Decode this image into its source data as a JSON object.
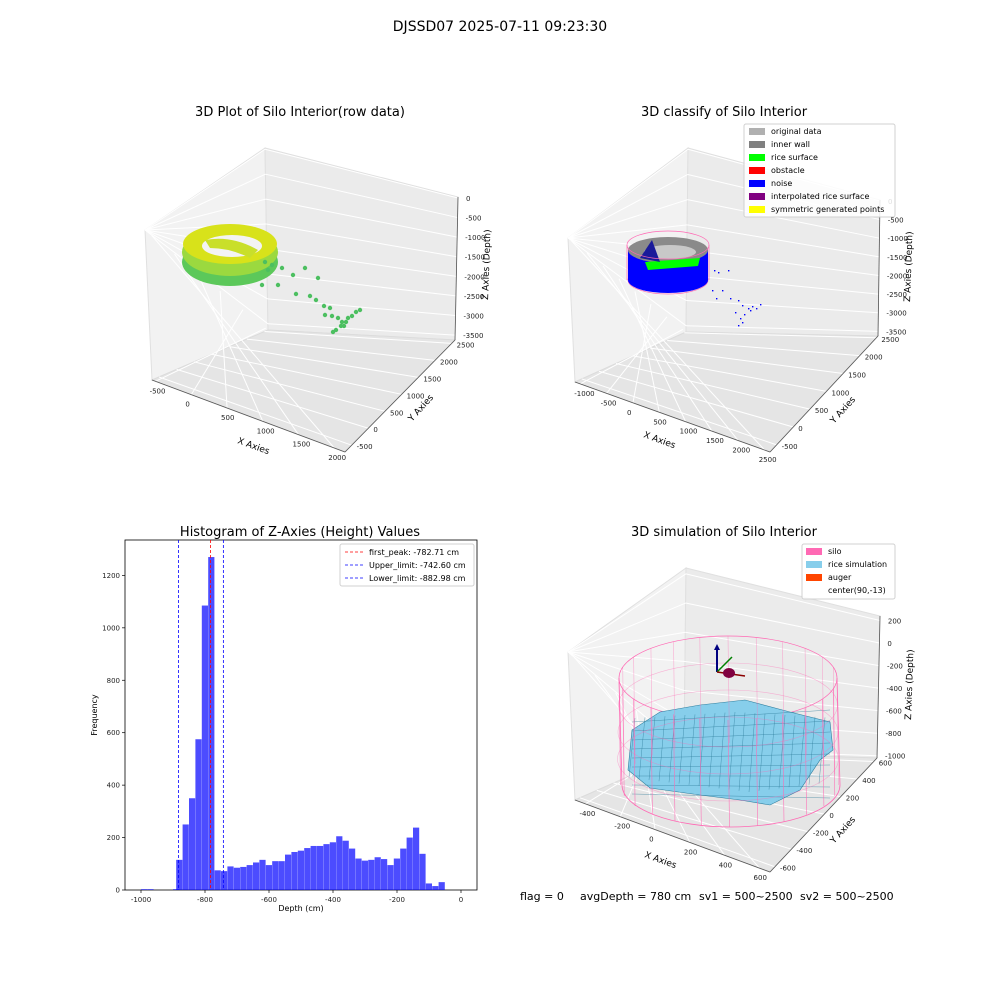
{
  "figure": {
    "suptitle": "DJSSD07 2025-07-11 09:23:30",
    "footer": {
      "flag": "flag = 0",
      "avg_depth": "avgDepth = 780 cm",
      "sv1": "sv1 = 500~2500",
      "sv2": "sv2 = 500~2500"
    }
  },
  "colors": {
    "original_data": "#b0b0b0",
    "inner_wall": "#808080",
    "rice_surface": "#00ff00",
    "obstacle": "#ff0000",
    "noise": "#0000ff",
    "interpolated": "#800080",
    "symmetric": "#ffff00",
    "silo": "#ff69b4",
    "rice_sim": "#87ceeb",
    "auger": "#ff4500",
    "hist_bar": "#0000ff"
  },
  "chart_data": [
    {
      "type": "scatter3d",
      "title": "3D Plot of Silo Interior(row data)",
      "xlabel": "X Axies",
      "ylabel": "Y Axies",
      "zlabel": "Z Axies (Depth)",
      "x_ticks": [
        "-500",
        "0",
        "500",
        "1000",
        "1500",
        "2000"
      ],
      "y_ticks": [
        "-500",
        "0",
        "500",
        "1000",
        "1500",
        "2000",
        "2500"
      ],
      "z_ticks": [
        "0",
        "-500",
        "-1000",
        "-1500",
        "-2000",
        "-2500",
        "-3000",
        "-3500"
      ],
      "grid": true
    },
    {
      "type": "scatter3d",
      "title": "3D classify of Silo Interior",
      "xlabel": "X Axies",
      "ylabel": "Y Axies",
      "zlabel": "Z Axies (Depth)",
      "x_ticks": [
        "-1000",
        "-500",
        "0",
        "500",
        "1000",
        "1500",
        "2000",
        "2500"
      ],
      "y_ticks": [
        "-500",
        "0",
        "500",
        "1000",
        "1500",
        "2000",
        "2500"
      ],
      "z_ticks": [
        "0",
        "-500",
        "-1000",
        "-1500",
        "-2000",
        "-2500",
        "-3000",
        "-3500"
      ],
      "legend": [
        "original data",
        "inner wall",
        "rice surface",
        "obstacle",
        "noise",
        "interpolated rice surface",
        "symmetric generated points"
      ],
      "legend_position": "top-right",
      "grid": true
    },
    {
      "type": "bar",
      "title": "Histogram of Z-Axies (Height) Values",
      "xlabel": "Depth (cm)",
      "ylabel": "Frequency",
      "xlim": [
        -1050,
        50
      ],
      "ylim": [
        0,
        1335
      ],
      "x_ticks": [
        -1000,
        -800,
        -600,
        -400,
        -200,
        0
      ],
      "y_ticks": [
        0,
        200,
        400,
        600,
        800,
        1000,
        1200
      ],
      "bin_width": 20,
      "bins": [
        {
          "x0": -1000,
          "y": 3
        },
        {
          "x0": -980,
          "y": 3
        },
        {
          "x0": -900,
          "y": 3
        },
        {
          "x0": -890,
          "y": 115
        },
        {
          "x0": -870,
          "y": 250
        },
        {
          "x0": -850,
          "y": 350
        },
        {
          "x0": -830,
          "y": 575
        },
        {
          "x0": -810,
          "y": 1085
        },
        {
          "x0": -790,
          "y": 1270
        },
        {
          "x0": -770,
          "y": 75
        },
        {
          "x0": -750,
          "y": 72
        },
        {
          "x0": -730,
          "y": 90
        },
        {
          "x0": -710,
          "y": 85
        },
        {
          "x0": -690,
          "y": 88
        },
        {
          "x0": -670,
          "y": 95
        },
        {
          "x0": -650,
          "y": 105
        },
        {
          "x0": -630,
          "y": 115
        },
        {
          "x0": -610,
          "y": 95
        },
        {
          "x0": -590,
          "y": 110
        },
        {
          "x0": -570,
          "y": 110
        },
        {
          "x0": -550,
          "y": 135
        },
        {
          "x0": -530,
          "y": 145
        },
        {
          "x0": -510,
          "y": 150
        },
        {
          "x0": -490,
          "y": 160
        },
        {
          "x0": -470,
          "y": 168
        },
        {
          "x0": -450,
          "y": 168
        },
        {
          "x0": -430,
          "y": 175
        },
        {
          "x0": -410,
          "y": 182
        },
        {
          "x0": -390,
          "y": 205
        },
        {
          "x0": -370,
          "y": 188
        },
        {
          "x0": -350,
          "y": 158
        },
        {
          "x0": -330,
          "y": 120
        },
        {
          "x0": -310,
          "y": 112
        },
        {
          "x0": -290,
          "y": 115
        },
        {
          "x0": -270,
          "y": 125
        },
        {
          "x0": -250,
          "y": 118
        },
        {
          "x0": -230,
          "y": 95
        },
        {
          "x0": -210,
          "y": 120
        },
        {
          "x0": -190,
          "y": 158
        },
        {
          "x0": -170,
          "y": 200
        },
        {
          "x0": -150,
          "y": 238
        },
        {
          "x0": -130,
          "y": 138
        },
        {
          "x0": -110,
          "y": 25
        },
        {
          "x0": -90,
          "y": 15
        },
        {
          "x0": -70,
          "y": 30
        }
      ],
      "lines": [
        {
          "label": "first_peak: -782.71 cm",
          "x": -782.71,
          "color": "#ff0000"
        },
        {
          "label": "Upper_limit: -742.60 cm",
          "x": -742.6,
          "color": "#0000ff"
        },
        {
          "label": "Lower_limit: -882.98 cm",
          "x": -882.98,
          "color": "#0000ff"
        }
      ],
      "legend_position": "top-right"
    },
    {
      "type": "surface3d",
      "title": "3D simulation of Silo Interior",
      "xlabel": "X Axies",
      "ylabel": "Y Axies",
      "zlabel": "Z Axies (Depth)",
      "x_ticks": [
        "-400",
        "-200",
        "0",
        "200",
        "400",
        "600"
      ],
      "y_ticks": [
        "-600",
        "-400",
        "-200",
        "0",
        "200",
        "400",
        "600"
      ],
      "z_ticks": [
        "200",
        "0",
        "-200",
        "-400",
        "-600",
        "-800",
        "-1000"
      ],
      "legend": [
        "silo",
        "rice simulation",
        "auger",
        "center(90,-13)"
      ],
      "legend_position": "top-right",
      "grid": true
    }
  ]
}
